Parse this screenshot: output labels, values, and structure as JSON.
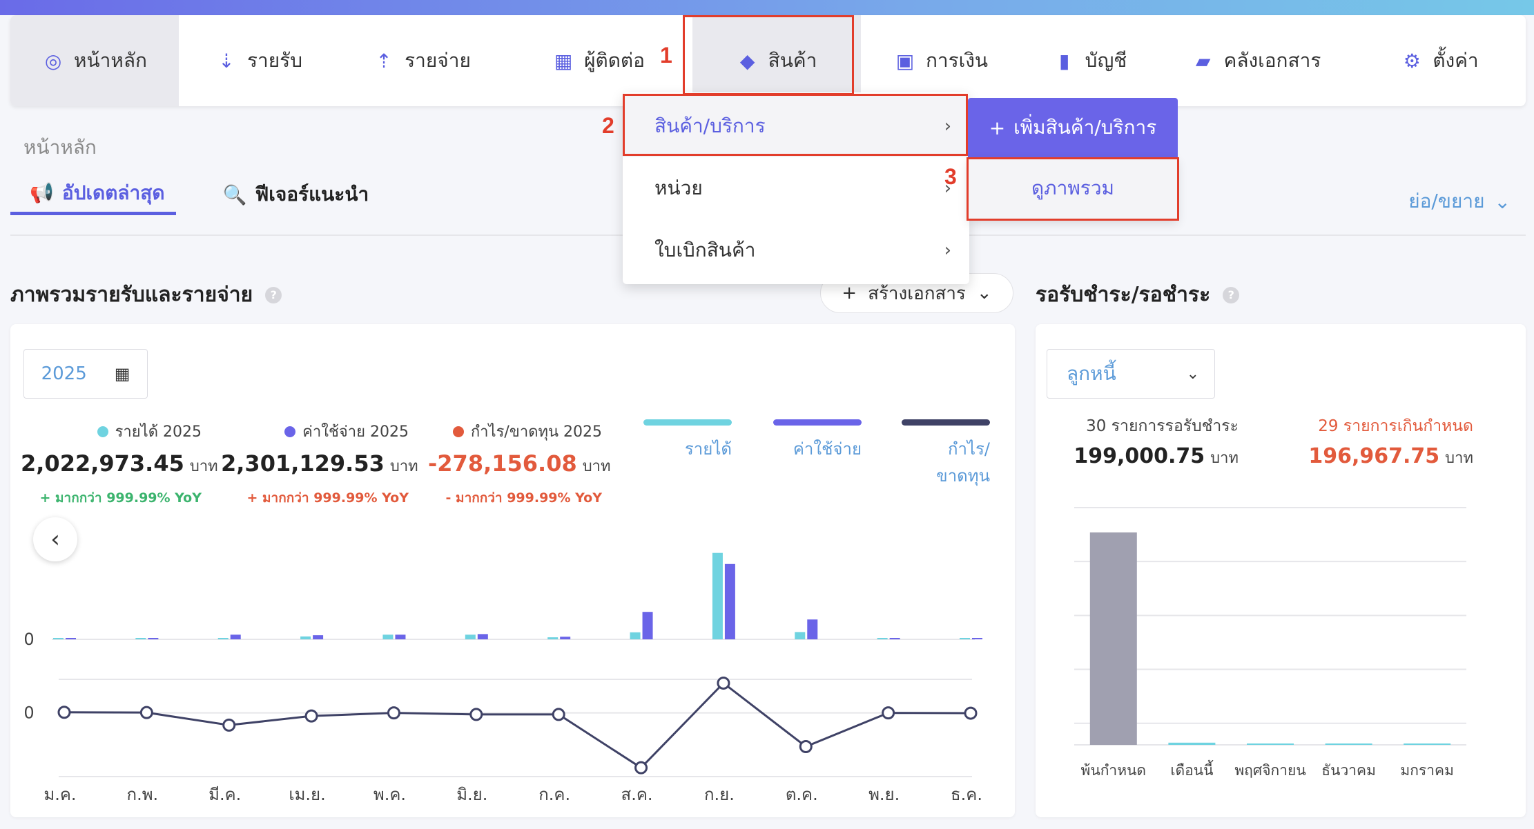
{
  "colors": {
    "accent": "#5b5fe0",
    "income": "#6fd3e0",
    "expense": "#6a64e8",
    "profit": "#3f4266",
    "negative": "#e25a3c",
    "positive": "#3cb46e",
    "annotation": "#e23d2b",
    "overdue_bar": "#a0a0b0"
  },
  "nav": {
    "items": [
      {
        "label": "หน้าหลัก",
        "icon": "dashboard-icon"
      },
      {
        "label": "รายรับ",
        "icon": "income-sort-icon"
      },
      {
        "label": "รายจ่าย",
        "icon": "expense-sort-icon"
      },
      {
        "label": "ผู้ติดต่อ",
        "icon": "contacts-building-icon"
      },
      {
        "label": "สินค้า",
        "icon": "cube-icon"
      },
      {
        "label": "การเงิน",
        "icon": "money-icon"
      },
      {
        "label": "บัญชี",
        "icon": "ledger-book-icon"
      },
      {
        "label": "คลังเอกสาร",
        "icon": "folder-open-icon"
      },
      {
        "label": "ตั้งค่า",
        "icon": "gear-icon"
      }
    ]
  },
  "annotations": {
    "step1": "1",
    "step2": "2",
    "step3": "3"
  },
  "product_menu": {
    "items": [
      {
        "label": "สินค้า/บริการ"
      },
      {
        "label": "หน่วย"
      },
      {
        "label": "ใบเบิกสินค้า"
      }
    ],
    "submenu": {
      "add_label": "เพิ่มสินค้า/บริการ",
      "view_label": "ดูภาพรวม"
    }
  },
  "breadcrumb": "หน้าหลัก",
  "tabs": [
    {
      "label": "อัปเดตล่าสุด"
    },
    {
      "label": "ฟีเจอร์แนะนำ"
    }
  ],
  "collapse_label": "ย่อ/ขยาย",
  "overview": {
    "title": "ภาพรวมรายรับและรายจ่าย",
    "create_doc_label": "สร้างเอกสาร",
    "year": "2025",
    "stats": [
      {
        "label": "รายได้ 2025",
        "value": "2,022,973.45",
        "unit": "บาท",
        "yoy": "+ มากกว่า 999.99% YoY"
      },
      {
        "label": "ค่าใช้จ่าย 2025",
        "value": "2,301,129.53",
        "unit": "บาท",
        "yoy": "+ มากกว่า 999.99% YoY"
      },
      {
        "label": "กำไร/ขาดทุน 2025",
        "value": "-278,156.08",
        "unit": "บาท",
        "yoy": "- มากกว่า 999.99% YoY"
      }
    ],
    "legend": [
      "รายได้",
      "ค่าใช้จ่าย",
      "กำไร/ขาดทุน"
    ]
  },
  "chart_data": [
    {
      "type": "bar",
      "categories": [
        "ม.ค.",
        "ก.พ.",
        "มี.ค.",
        "เม.ย.",
        "พ.ค.",
        "มิ.ย.",
        "ก.ค.",
        "ส.ค.",
        "ก.ย.",
        "ต.ค.",
        "พ.ย.",
        "ธ.ค."
      ],
      "series": [
        {
          "name": "รายได้",
          "values": [
            10000,
            8000,
            2000,
            50000,
            80000,
            80000,
            35000,
            120000,
            1480000,
            125000,
            8000,
            6000
          ]
        },
        {
          "name": "ค่าใช้จ่าย",
          "values": [
            6000,
            6000,
            80000,
            70000,
            80000,
            90000,
            45000,
            470000,
            1290000,
            340000,
            8000,
            8000
          ]
        }
      ],
      "y_tick_labels": [
        "0"
      ],
      "ylim": [
        0,
        1500000
      ]
    },
    {
      "type": "line",
      "categories": [
        "ม.ค.",
        "ก.พ.",
        "มี.ค.",
        "เม.ย.",
        "พ.ค.",
        "มิ.ย.",
        "ก.ค.",
        "ส.ค.",
        "ก.ย.",
        "ต.ค.",
        "พ.ย.",
        "ธ.ค."
      ],
      "series": [
        {
          "name": "กำไร/ขาดทุน",
          "values": [
            4000,
            2000,
            -78000,
            -20000,
            0,
            -10000,
            -10000,
            -350000,
            190000,
            -215000,
            0,
            -2000
          ]
        }
      ],
      "y_tick_labels": [
        "0"
      ],
      "ylim": [
        -380000,
        280000
      ]
    },
    {
      "type": "bar",
      "categories": [
        "พ้นกำหนด",
        "เดือนนี้",
        "พฤศจิกายน",
        "ธันวาคม",
        "มกราคม"
      ],
      "series": [
        {
          "name": "ลูกหนี้",
          "values": [
            196967.75,
            2033,
            0,
            0,
            0
          ]
        }
      ],
      "ylim": [
        0,
        220000
      ]
    }
  ],
  "receivables": {
    "title": "รอรับชำระ/รอชำระ",
    "selector": "ลูกหนี้",
    "pending": {
      "label": "30 รายการรอรับชำระ",
      "value": "199,000.75",
      "unit": "บาท"
    },
    "overdue": {
      "label": "29 รายการเกินกำหนด",
      "value": "196,967.75",
      "unit": "บาท"
    }
  }
}
